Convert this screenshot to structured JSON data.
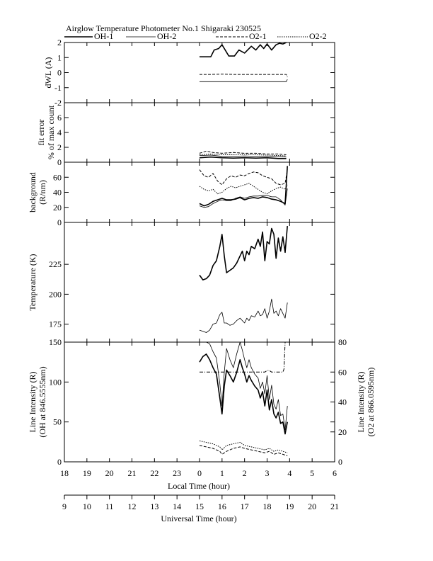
{
  "title": "Airglow Temperature Photometer No.1  Shigaraki   230525",
  "legend": {
    "oh1": "OH-1",
    "oh2": "OH-2",
    "o21": "O2-1",
    "o22": "O2-2"
  },
  "chart_data": [
    {
      "type": "line",
      "panel": "dwl",
      "ylabel": "dWL (A)",
      "ylim": [
        -2,
        2
      ],
      "yticks": [
        -2,
        -1,
        0,
        1,
        2
      ],
      "series": [
        {
          "name": "OH-1",
          "style": "solid-thick",
          "x": [
            0.0,
            0.5,
            0.65,
            0.85,
            1.0,
            1.3,
            1.55,
            1.75,
            2.0,
            2.3,
            2.5,
            2.7,
            2.85,
            3.0,
            3.2,
            3.4,
            3.55,
            3.7,
            3.85
          ],
          "y": [
            1.05,
            1.05,
            1.5,
            1.6,
            1.85,
            1.1,
            1.1,
            1.5,
            1.3,
            1.75,
            1.5,
            1.85,
            1.6,
            1.9,
            1.5,
            1.85,
            1.95,
            1.9,
            2.0
          ]
        },
        {
          "name": "OH-2",
          "style": "solid",
          "x": [
            0.0,
            0.5,
            1.0,
            1.5,
            2.0,
            2.5,
            3.0,
            3.5,
            3.85,
            3.9
          ],
          "y": [
            -0.6,
            -0.6,
            -0.6,
            -0.6,
            -0.6,
            -0.6,
            -0.6,
            -0.6,
            -0.6,
            -0.45
          ]
        },
        {
          "name": "O2-1",
          "style": "dashed",
          "x": [
            0.0,
            0.5,
            1.0,
            1.5,
            2.0,
            2.5,
            3.0,
            3.5,
            3.85,
            3.9
          ],
          "y": [
            -0.12,
            -0.12,
            -0.1,
            -0.12,
            -0.12,
            -0.12,
            -0.12,
            -0.12,
            -0.12,
            -0.3
          ]
        }
      ]
    },
    {
      "type": "line",
      "panel": "fiterror",
      "ylabel": "fit error",
      "ylabel2": "% of max count",
      "ylim": [
        0,
        8
      ],
      "yticks": [
        0,
        2,
        4,
        6
      ],
      "series": [
        {
          "name": "OH-1",
          "style": "solid-thick",
          "x": [
            0.0,
            0.5,
            1.0,
            1.5,
            2.0,
            2.5,
            3.0,
            3.5,
            3.85
          ],
          "y": [
            0.6,
            0.7,
            0.6,
            0.55,
            0.6,
            0.55,
            0.6,
            0.5,
            0.5
          ]
        },
        {
          "name": "OH-2",
          "style": "solid",
          "x": [
            0.0,
            0.5,
            1.0,
            1.5,
            2.0,
            2.5,
            3.0,
            3.5,
            3.85
          ],
          "y": [
            0.9,
            0.95,
            0.8,
            0.8,
            0.85,
            0.8,
            0.8,
            0.75,
            0.7
          ]
        },
        {
          "name": "O2-1",
          "style": "dashed",
          "x": [
            0.0,
            0.3,
            0.6,
            1.0,
            1.5,
            2.0,
            2.5,
            3.0,
            3.5,
            3.85
          ],
          "y": [
            1.2,
            1.5,
            1.3,
            1.2,
            1.3,
            1.2,
            1.2,
            1.1,
            1.1,
            1.0
          ]
        },
        {
          "name": "O2-2",
          "style": "dotted",
          "x": [
            0.0,
            0.5,
            1.0,
            1.5,
            2.0,
            2.5,
            3.0,
            3.5,
            3.85
          ],
          "y": [
            1.0,
            1.1,
            1.0,
            1.0,
            1.05,
            1.0,
            0.95,
            0.9,
            0.85
          ]
        }
      ]
    },
    {
      "type": "line",
      "panel": "background",
      "ylabel": "background",
      "ylabel2": "(R/nm)",
      "ylim": [
        0,
        80
      ],
      "yticks": [
        0,
        20,
        40,
        60
      ],
      "series": [
        {
          "name": "OH-1",
          "style": "solid-thick",
          "x": [
            0.0,
            0.2,
            0.4,
            0.6,
            0.8,
            1.0,
            1.2,
            1.4,
            1.6,
            1.8,
            2.0,
            2.2,
            2.4,
            2.6,
            2.8,
            3.0,
            3.2,
            3.4,
            3.6,
            3.8,
            3.9
          ],
          "y": [
            25,
            22,
            24,
            28,
            30,
            32,
            30,
            30,
            31,
            33,
            30,
            32,
            33,
            32,
            34,
            33,
            31,
            30,
            28,
            25,
            75
          ]
        },
        {
          "name": "OH-2",
          "style": "solid",
          "x": [
            0.0,
            0.2,
            0.4,
            0.6,
            0.8,
            1.0,
            1.2,
            1.4,
            1.6,
            1.8,
            2.0,
            2.2,
            2.4,
            2.6,
            2.8,
            3.0,
            3.2,
            3.4,
            3.6,
            3.8,
            3.9
          ],
          "y": [
            22,
            20,
            21,
            25,
            28,
            30,
            29,
            29,
            32,
            34,
            32,
            34,
            35,
            35,
            36,
            36,
            34,
            34,
            30,
            23,
            45
          ]
        },
        {
          "name": "O2-1",
          "style": "dashed",
          "x": [
            0.0,
            0.2,
            0.4,
            0.6,
            0.8,
            1.0,
            1.2,
            1.4,
            1.6,
            1.8,
            2.0,
            2.2,
            2.4,
            2.6,
            2.8,
            3.0,
            3.2,
            3.4,
            3.6,
            3.8,
            3.9
          ],
          "y": [
            70,
            62,
            60,
            65,
            55,
            50,
            58,
            62,
            60,
            63,
            62,
            65,
            67,
            66,
            62,
            60,
            58,
            52,
            50,
            52,
            70
          ]
        },
        {
          "name": "O2-2",
          "style": "dotted",
          "x": [
            0.0,
            0.2,
            0.4,
            0.6,
            0.8,
            1.0,
            1.2,
            1.4,
            1.6,
            1.8,
            2.0,
            2.2,
            2.4,
            2.6,
            2.8,
            3.0,
            3.2,
            3.4,
            3.6,
            3.8,
            3.9
          ],
          "y": [
            48,
            44,
            42,
            44,
            38,
            40,
            45,
            48,
            46,
            48,
            50,
            52,
            48,
            44,
            40,
            38,
            42,
            45,
            47,
            44,
            50
          ]
        }
      ]
    },
    {
      "type": "line",
      "panel": "temperature",
      "ylabel": "Temperature (K)",
      "ylim": [
        160,
        260
      ],
      "yticks": [
        175,
        200,
        225
      ],
      "series": [
        {
          "name": "OH-1",
          "style": "solid-thick",
          "x": [
            0.0,
            0.15,
            0.3,
            0.45,
            0.6,
            0.75,
            0.9,
            1.0,
            1.1,
            1.2,
            1.35,
            1.5,
            1.65,
            1.8,
            1.9,
            2.0,
            2.1,
            2.2,
            2.3,
            2.45,
            2.6,
            2.7,
            2.8,
            2.9,
            3.0,
            3.1,
            3.2,
            3.3,
            3.4,
            3.5,
            3.6,
            3.7,
            3.8,
            3.9
          ],
          "y": [
            216,
            212,
            213,
            216,
            224,
            228,
            240,
            250,
            232,
            218,
            220,
            222,
            226,
            232,
            236,
            228,
            236,
            233,
            240,
            238,
            246,
            240,
            252,
            228,
            244,
            242,
            255,
            250,
            230,
            247,
            236,
            248,
            235,
            257
          ]
        },
        {
          "name": "OH-2",
          "style": "solid",
          "x": [
            0.0,
            0.15,
            0.3,
            0.45,
            0.6,
            0.75,
            0.9,
            1.0,
            1.1,
            1.2,
            1.35,
            1.5,
            1.65,
            1.8,
            1.9,
            2.0,
            2.1,
            2.2,
            2.3,
            2.45,
            2.6,
            2.7,
            2.8,
            2.9,
            3.0,
            3.1,
            3.2,
            3.3,
            3.4,
            3.5,
            3.6,
            3.7,
            3.8,
            3.9
          ],
          "y": [
            170,
            169,
            168,
            170,
            175,
            176,
            183,
            185,
            176,
            176,
            174,
            175,
            178,
            180,
            178,
            176,
            180,
            178,
            182,
            181,
            186,
            182,
            183,
            188,
            180,
            186,
            196,
            184,
            186,
            182,
            188,
            184,
            180,
            193
          ]
        }
      ]
    },
    {
      "type": "line",
      "panel": "intensity",
      "ylabel": "Line Intensity (R)",
      "ylabel2": "(OH at 846.5555nm)",
      "ylim": [
        0,
        150
      ],
      "yticks": [
        0,
        50,
        100,
        150
      ],
      "y2label": "Line Intensity (R)",
      "y2label2": "(O2 at 866.0595nm)",
      "y2lim": [
        0,
        80
      ],
      "y2ticks": [
        0,
        20,
        40,
        60,
        80
      ],
      "series": [
        {
          "name": "OH-1",
          "style": "solid-thick",
          "axis": "left",
          "x": [
            0.0,
            0.15,
            0.3,
            0.45,
            0.6,
            0.75,
            0.9,
            1.0,
            1.1,
            1.2,
            1.35,
            1.5,
            1.65,
            1.8,
            1.9,
            2.0,
            2.1,
            2.2,
            2.3,
            2.45,
            2.6,
            2.7,
            2.8,
            2.9,
            3.0,
            3.1,
            3.2,
            3.3,
            3.4,
            3.5,
            3.6,
            3.7,
            3.8,
            3.9
          ],
          "y": [
            125,
            132,
            135,
            128,
            118,
            110,
            80,
            60,
            95,
            115,
            108,
            100,
            112,
            128,
            118,
            110,
            100,
            108,
            102,
            95,
            90,
            80,
            88,
            70,
            90,
            65,
            78,
            60,
            55,
            62,
            48,
            50,
            35,
            50
          ]
        },
        {
          "name": "OH-2",
          "style": "solid",
          "axis": "left",
          "x": [
            0.0,
            0.15,
            0.3,
            0.45,
            0.6,
            0.75,
            0.9,
            1.0,
            1.1,
            1.2,
            1.35,
            1.5,
            1.65,
            1.8,
            1.9,
            2.0,
            2.1,
            2.2,
            2.3,
            2.45,
            2.6,
            2.7,
            2.8,
            2.9,
            3.0,
            3.1,
            3.2,
            3.3,
            3.4,
            3.5,
            3.6,
            3.7,
            3.8,
            3.9
          ],
          "y": [
            150,
            160,
            157,
            148,
            138,
            130,
            98,
            70,
            112,
            142,
            128,
            118,
            135,
            155,
            140,
            128,
            118,
            128,
            118,
            110,
            105,
            92,
            100,
            85,
            108,
            78,
            96,
            72,
            66,
            78,
            58,
            60,
            40,
            70
          ]
        },
        {
          "name": "O2-1",
          "style": "dashed",
          "axis": "right",
          "x": [
            0.0,
            0.3,
            0.6,
            0.9,
            1.0,
            1.2,
            1.5,
            1.8,
            2.0,
            2.3,
            2.6,
            2.9,
            3.1,
            3.3,
            3.5,
            3.7,
            3.9
          ],
          "y": [
            11,
            10,
            9,
            7,
            5,
            7,
            9,
            10,
            9,
            8,
            7,
            6,
            7,
            5,
            6,
            5,
            4
          ]
        },
        {
          "name": "O2-2",
          "style": "dotted",
          "axis": "right",
          "x": [
            0.0,
            0.3,
            0.6,
            0.9,
            1.0,
            1.2,
            1.5,
            1.8,
            2.0,
            2.3,
            2.6,
            2.9,
            3.1,
            3.3,
            3.5,
            3.7,
            3.9
          ],
          "y": [
            14,
            13,
            12,
            10,
            8,
            11,
            12,
            13,
            11,
            10,
            9,
            8,
            9,
            7,
            8,
            7,
            6
          ]
        },
        {
          "name": "O2-2 ref",
          "style": "dashdot",
          "axis": "right",
          "x": [
            0.0,
            0.5,
            1.0,
            1.5,
            2.0,
            2.5,
            2.9,
            3.0,
            3.1,
            3.2,
            3.5,
            3.7,
            3.75,
            3.8
          ],
          "y": [
            60,
            60,
            60,
            60,
            60,
            60,
            60,
            61,
            61,
            60,
            60,
            60,
            62,
            80
          ]
        }
      ]
    }
  ],
  "xaxis_local": {
    "label": "Local Time (hour)",
    "ticks": [
      "18",
      "19",
      "20",
      "21",
      "22",
      "23",
      "0",
      "1",
      "2",
      "3",
      "4",
      "5",
      "6"
    ]
  },
  "xaxis_ut": {
    "label": "Universal Time (hour)",
    "ticks": [
      "9",
      "10",
      "11",
      "12",
      "13",
      "14",
      "15",
      "16",
      "17",
      "18",
      "19",
      "20",
      "21"
    ]
  }
}
